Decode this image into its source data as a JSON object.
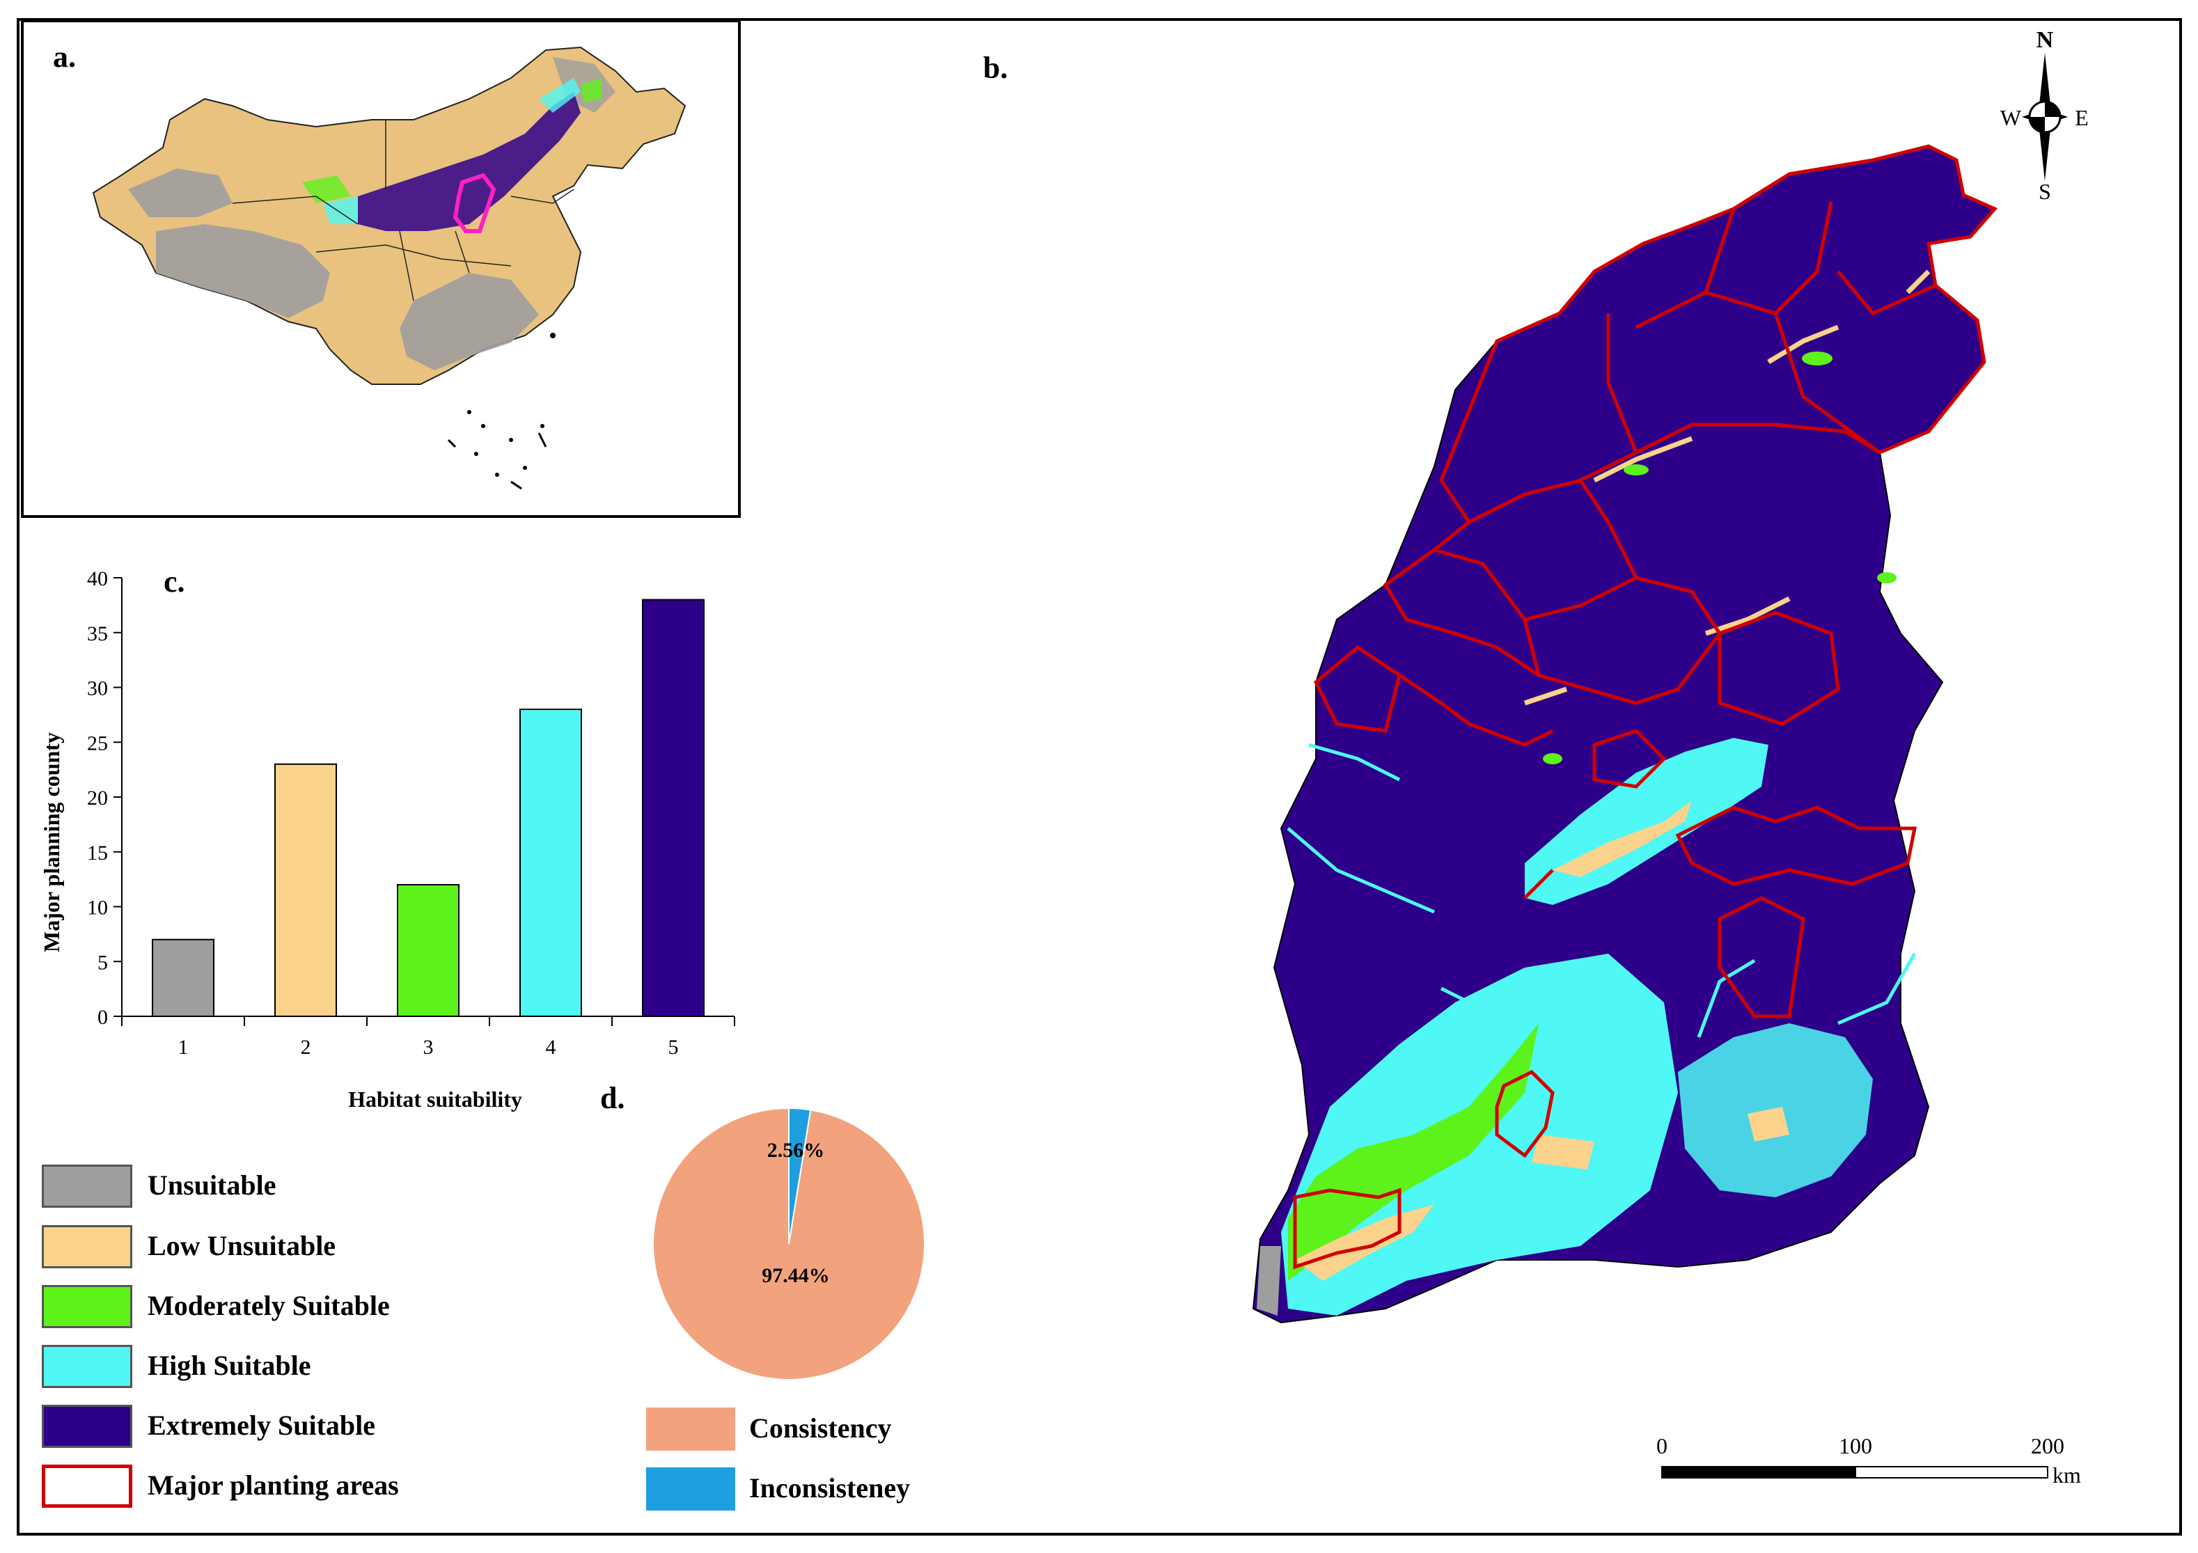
{
  "panels": {
    "a": "a.",
    "b": "b.",
    "c": "c.",
    "d": "d."
  },
  "colors": {
    "unsuitable": "#9e9e9e",
    "low": "#fbd38d",
    "moderate": "#5ef21b",
    "high": "#4ff7f5",
    "extreme": "#2e008a",
    "planting": "#d10000",
    "highlight": "#ff1fc4",
    "consistency": "#f2a37e",
    "inconsistency": "#1d9fe0"
  },
  "chart_data": [
    {
      "type": "bar",
      "title": "c.",
      "xlabel": "Habitat suitability",
      "ylabel": "Major planning county",
      "categories": [
        "1",
        "2",
        "3",
        "4",
        "5"
      ],
      "values": [
        7,
        23,
        12,
        28,
        38
      ],
      "bar_colors": [
        "#9e9e9e",
        "#fbd38d",
        "#5ef21b",
        "#4ff7f5",
        "#2e008a"
      ],
      "ylim": [
        0,
        40
      ],
      "yticks": [
        "0",
        "5",
        "10",
        "15",
        "20",
        "25",
        "30",
        "35",
        "40"
      ],
      "grid": false
    },
    {
      "type": "pie",
      "title": "d.",
      "labels": [
        "Consistency",
        "Inconsisteney"
      ],
      "values": [
        97.44,
        2.56
      ],
      "value_labels": [
        "97.44%",
        "2.56%"
      ],
      "colors": [
        "#f2a37e",
        "#1d9fe0"
      ]
    }
  ],
  "legend": [
    {
      "label": "Unsuitable",
      "color": "#9e9e9e"
    },
    {
      "label": "Low Unsuitable",
      "color": "#fbd38d"
    },
    {
      "label": "Moderately Suitable",
      "color": "#5ef21b"
    },
    {
      "label": "High Suitable",
      "color": "#4ff7f5"
    },
    {
      "label": "Extremely Suitable",
      "color": "#2e008a"
    },
    {
      "label": "Major planting areas",
      "color": "#ffffff",
      "border": "#d10000"
    }
  ],
  "legend_d": [
    {
      "label": "Consistency",
      "color": "#f2a37e"
    },
    {
      "label": "Inconsisteney",
      "color": "#1d9fe0"
    }
  ],
  "compass": {
    "n": "N",
    "s": "S",
    "e": "E",
    "w": "W"
  },
  "scale_bar": {
    "ticks": [
      "0",
      "100",
      "200"
    ],
    "unit": "km"
  }
}
